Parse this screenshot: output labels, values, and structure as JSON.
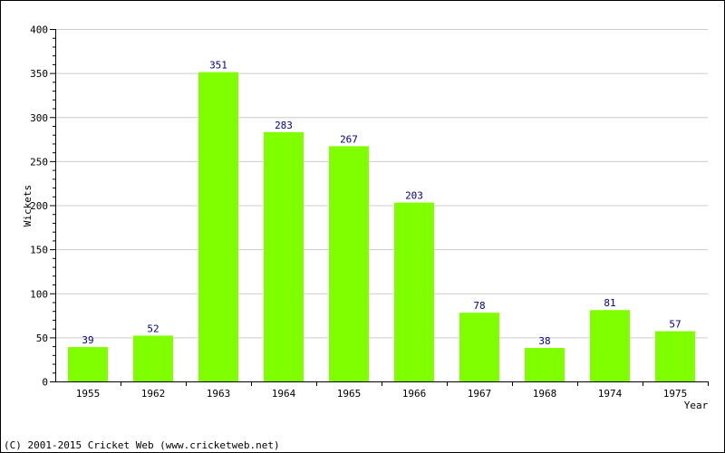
{
  "chart_data": {
    "type": "bar",
    "categories": [
      "1955",
      "1962",
      "1963",
      "1964",
      "1965",
      "1966",
      "1967",
      "1968",
      "1974",
      "1975"
    ],
    "values": [
      39,
      52,
      351,
      283,
      267,
      203,
      78,
      38,
      81,
      57
    ],
    "xlabel": "Year",
    "ylabel": "Wickets",
    "ylim": [
      0,
      400
    ],
    "yticks": [
      0,
      50,
      100,
      150,
      200,
      250,
      300,
      350,
      400
    ],
    "grid": true,
    "data_labels": true,
    "bar_color": "#80ff00",
    "label_color": "#000080",
    "grid_color": "#cccccc"
  },
  "footer": {
    "text": "(C) 2001-2015 Cricket Web (www.cricketweb.net)"
  }
}
